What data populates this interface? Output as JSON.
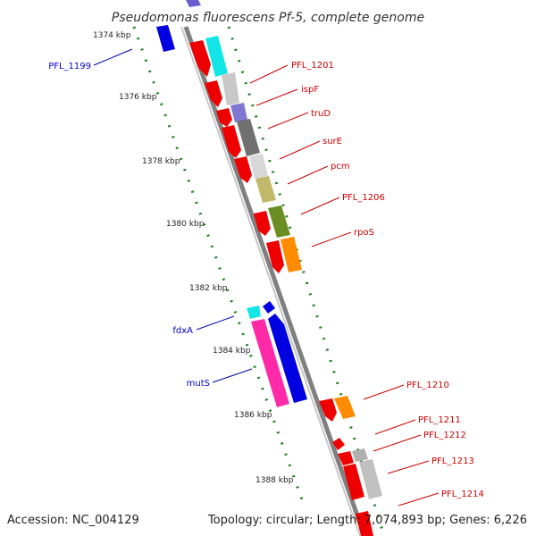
{
  "title": "Pseudomonas fluorescens Pf-5, complete genome",
  "footer": {
    "accession": "Accession: NC_004129",
    "summary": "Topology: circular; Length: 7,074,893 bp; Genes: 6,226"
  },
  "ticks": [
    "1374 kbp",
    "1376 kbp",
    "1378 kbp",
    "1380 kbp",
    "1382 kbp",
    "1384 kbp",
    "1386 kbp",
    "1388 kbp"
  ],
  "genes": [
    {
      "name": "PFL_1199",
      "color": "#0000cc"
    },
    {
      "name": "PFL_1201",
      "color": "#cc0000"
    },
    {
      "name": "ispF",
      "color": "#cc0000"
    },
    {
      "name": "truD",
      "color": "#cc0000"
    },
    {
      "name": "surE",
      "color": "#cc0000"
    },
    {
      "name": "pcm",
      "color": "#cc0000"
    },
    {
      "name": "PFL_1206",
      "color": "#cc0000"
    },
    {
      "name": "rpoS",
      "color": "#cc0000"
    },
    {
      "name": "fdxA",
      "color": "#0000cc"
    },
    {
      "name": "mutS",
      "color": "#0000cc"
    },
    {
      "name": "PFL_1210",
      "color": "#cc0000"
    },
    {
      "name": "PFL_1211",
      "color": "#cc0000"
    },
    {
      "name": "PFL_1212",
      "color": "#cc0000"
    },
    {
      "name": "PFL_1213",
      "color": "#cc0000"
    },
    {
      "name": "PFL_1214",
      "color": "#cc0000"
    }
  ]
}
